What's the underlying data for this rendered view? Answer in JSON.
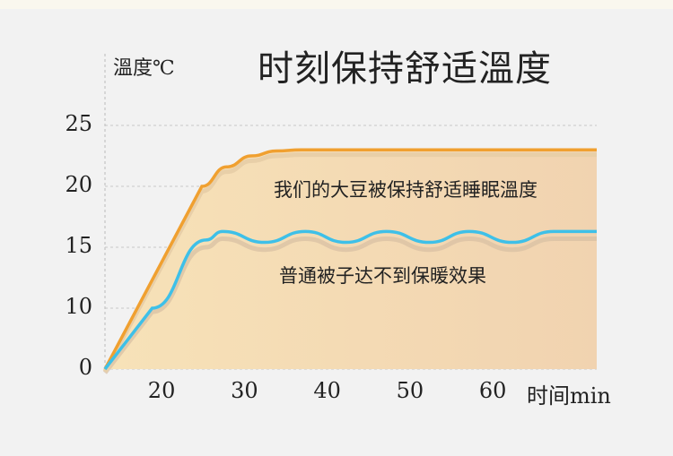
{
  "chart_data": {
    "type": "line",
    "title": "时刻保持舒适溫度",
    "ylabel": "溫度℃",
    "xlabel": "时间min",
    "y_ticks": [
      0,
      10,
      15,
      20,
      25
    ],
    "x_ticks": [
      20,
      30,
      40,
      50,
      60
    ],
    "xlim": [
      13.3,
      72.7
    ],
    "grid": true,
    "series": [
      {
        "name": "我们的大豆被保持舒适睡眠溫度",
        "color": "#f0a030",
        "x": [
          13.3,
          25,
          28,
          31,
          34,
          37,
          72.7
        ],
        "y": [
          0,
          20,
          21.6,
          22.5,
          22.9,
          23,
          23
        ]
      },
      {
        "name": "普通被子达不到保暖效果",
        "color": "#3ec0e8",
        "x": [
          13.3,
          19,
          25.5,
          27.5,
          32.6,
          37.5,
          42.4,
          47.3,
          52.5,
          57.3,
          62.5,
          67.5,
          72.7
        ],
        "y": [
          0,
          10,
          15.6,
          16.3,
          15.4,
          16.3,
          15.4,
          16.3,
          15.4,
          16.3,
          15.4,
          16.3,
          16.3
        ]
      }
    ],
    "annotations": [
      "我们的大豆被保持舒适睡眠溫度",
      "普通被子达不到保暖效果"
    ]
  }
}
